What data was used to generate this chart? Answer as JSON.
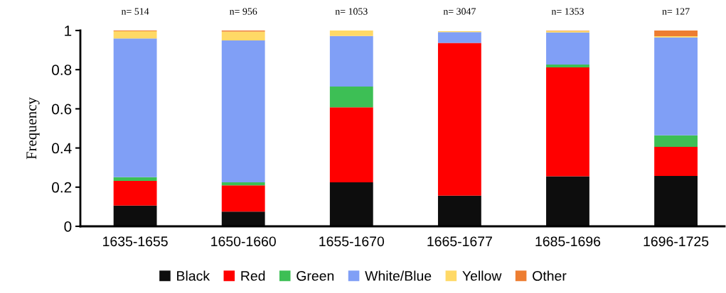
{
  "chart_data": {
    "type": "bar",
    "stacked": true,
    "ylabel": "Frequency",
    "categories": [
      "1635-1655",
      "1650-1660",
      "1655-1670",
      "1665-1677",
      "1685-1696",
      "1696-1725"
    ],
    "series": [
      {
        "name": "Black",
        "color": "#0d0d0d",
        "values": [
          0.106,
          0.075,
          0.225,
          0.157,
          0.255,
          0.257
        ]
      },
      {
        "name": "Red",
        "color": "#ff0000",
        "values": [
          0.126,
          0.134,
          0.383,
          0.78,
          0.557,
          0.149
        ]
      },
      {
        "name": "Green",
        "color": "#3dbf55",
        "values": [
          0.019,
          0.016,
          0.106,
          null,
          0.014,
          0.059
        ]
      },
      {
        "name": "White/Blue",
        "color": "#809ff6",
        "values": [
          0.708,
          0.724,
          0.258,
          0.055,
          0.164,
          0.5
        ]
      },
      {
        "name": "Yellow",
        "color": "#ffd966",
        "values": [
          0.037,
          0.046,
          0.028,
          0.004,
          0.008,
          0.006
        ]
      },
      {
        "name": "Other",
        "color": "#ed7d31",
        "values": [
          0.004,
          0.005,
          0.0,
          null,
          0.002,
          0.029
        ]
      }
    ],
    "annotations": [
      "n= 514",
      "n= 956",
      "n= 1053",
      "n= 3047",
      "n= 1353",
      "n= 127"
    ],
    "ylim": [
      0,
      1
    ],
    "yticks": [
      0,
      0.2,
      0.4,
      0.6,
      0.8,
      1
    ],
    "grid": false,
    "legend": "bottom"
  }
}
